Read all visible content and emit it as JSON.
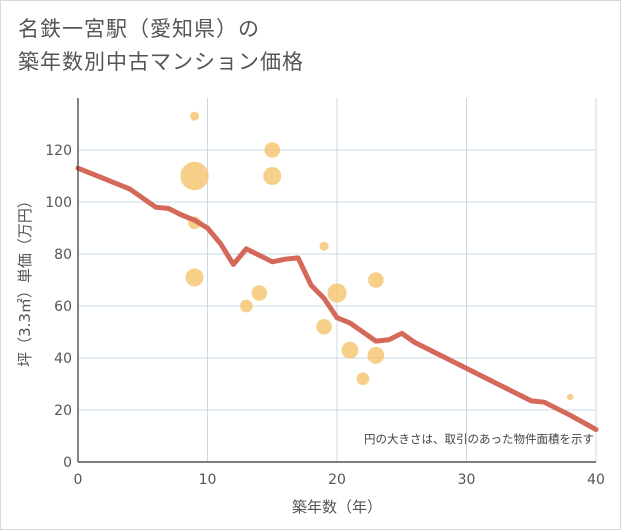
{
  "title": {
    "line1": "名鉄一宮駅（愛知県）の",
    "line2": "築年数別中古マンション価格"
  },
  "colors": {
    "bubble": "#f5c36b",
    "line": "#d4695a",
    "grid": "#c8d8ea",
    "axis": "#333333"
  },
  "chart_data": {
    "type": "scatter",
    "xlabel": "築年数（年）",
    "ylabel": "坪（3.3㎡）単価（万円）",
    "xlim": [
      0,
      40
    ],
    "ylim": [
      0,
      140
    ],
    "xticks": [
      0,
      10,
      20,
      30,
      40
    ],
    "yticks": [
      0,
      20,
      40,
      60,
      80,
      100,
      120
    ],
    "grid": true,
    "annotation": "円の大きさは、取引のあった物件面積を示す",
    "bubbles": [
      {
        "x": 9,
        "y": 133,
        "size": 1
      },
      {
        "x": 9,
        "y": 110,
        "size": 10
      },
      {
        "x": 9,
        "y": 92,
        "size": 2
      },
      {
        "x": 9,
        "y": 71,
        "size": 4
      },
      {
        "x": 13,
        "y": 60,
        "size": 2
      },
      {
        "x": 14,
        "y": 65,
        "size": 3
      },
      {
        "x": 15,
        "y": 120,
        "size": 3
      },
      {
        "x": 15,
        "y": 110,
        "size": 4
      },
      {
        "x": 19,
        "y": 83,
        "size": 1
      },
      {
        "x": 19,
        "y": 52,
        "size": 3
      },
      {
        "x": 20,
        "y": 65,
        "size": 4.5
      },
      {
        "x": 21,
        "y": 43,
        "size": 3.5
      },
      {
        "x": 22,
        "y": 32,
        "size": 2
      },
      {
        "x": 23,
        "y": 70,
        "size": 3
      },
      {
        "x": 23,
        "y": 41,
        "size": 3.5
      },
      {
        "x": 38,
        "y": 25,
        "size": 0.5
      }
    ],
    "series": [
      {
        "type": "line",
        "x": [
          0,
          2,
          4,
          6,
          7,
          8,
          9,
          10,
          11,
          12,
          13,
          14,
          15,
          16,
          17,
          18,
          19,
          20,
          21,
          22,
          23,
          24,
          25,
          26,
          28,
          30,
          32,
          34,
          35,
          36,
          38,
          40
        ],
        "y": [
          113,
          109,
          105,
          98,
          97.5,
          95,
          93,
          90,
          84,
          76,
          82,
          79.5,
          77,
          78,
          78.5,
          68,
          63,
          55.5,
          53.5,
          50,
          46.5,
          47,
          49.5,
          46,
          41,
          36,
          31,
          26,
          23.5,
          23,
          18,
          12.5
        ]
      }
    ]
  }
}
